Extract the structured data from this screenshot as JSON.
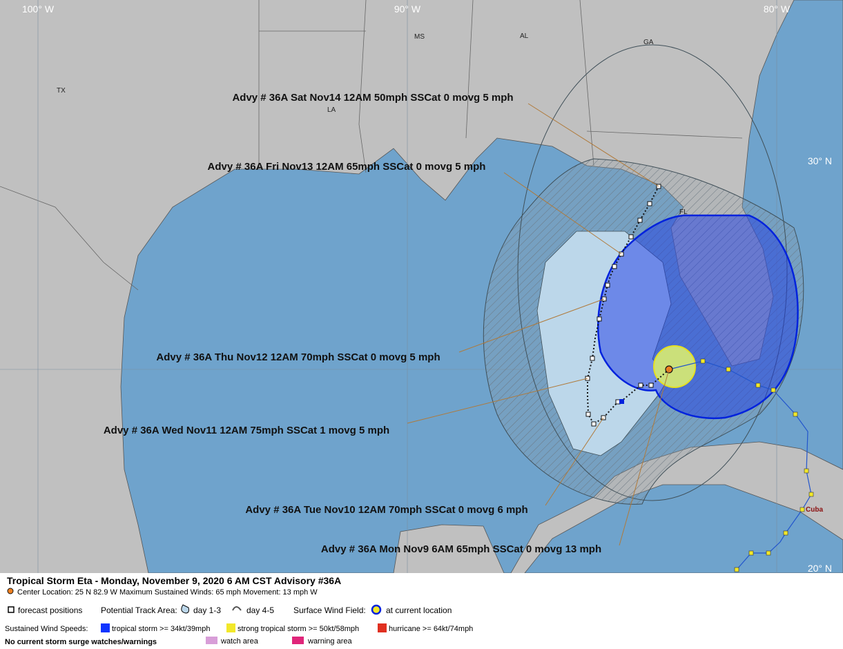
{
  "map": {
    "longitude_labels": [
      "100° W",
      "90° W",
      "80° W"
    ],
    "latitude_labels": [
      "30° N",
      "20° N"
    ],
    "place_labels": [
      "TX",
      "LA",
      "MS",
      "AL",
      "GA",
      "FL",
      "Cuba"
    ]
  },
  "advisories": [
    "Advy # 36A Sat Nov14 12AM  50mph SSCat 0 movg 5 mph",
    "Advy # 36A Fri Nov13 12AM  65mph SSCat 0 movg 5 mph",
    "Advy # 36A Thu Nov12 12AM  70mph SSCat 0 movg 5 mph",
    "Advy # 36A Wed Nov11 12AM  75mph SSCat 1 movg 5 mph",
    "Advy # 36A Tue Nov10 12AM  70mph SSCat 0 movg 6 mph",
    "Advy # 36A Mon Nov9 6AM  65mph SSCat 0 movg 13 mph"
  ],
  "legend": {
    "title": "Tropical Storm Eta  -  Monday, November 9, 2020  6 AM CST   Advisory #36A",
    "center": "Center Location: 25 N  82.9 W   Maximum Sustained Winds: 65 mph   Movement: 13 mph W",
    "forecast_positions": "forecast positions",
    "track_area_label": "Potential Track Area:",
    "day_1_3": "day 1-3",
    "day_4_5": "day 4-5",
    "wind_field_label": "Surface Wind Field:",
    "current_location": "at current location",
    "wind_speeds_label": "Sustained Wind Speeds:",
    "tropical_storm": "tropical storm >= 34kt/39mph",
    "strong_tropical_storm": "strong tropical storm >= 50kt/58mph",
    "hurricane": "hurricane >= 64kt/74mph",
    "surge": "No current storm surge watches/warnings",
    "watch": "watch area",
    "warning": "warning area"
  }
}
